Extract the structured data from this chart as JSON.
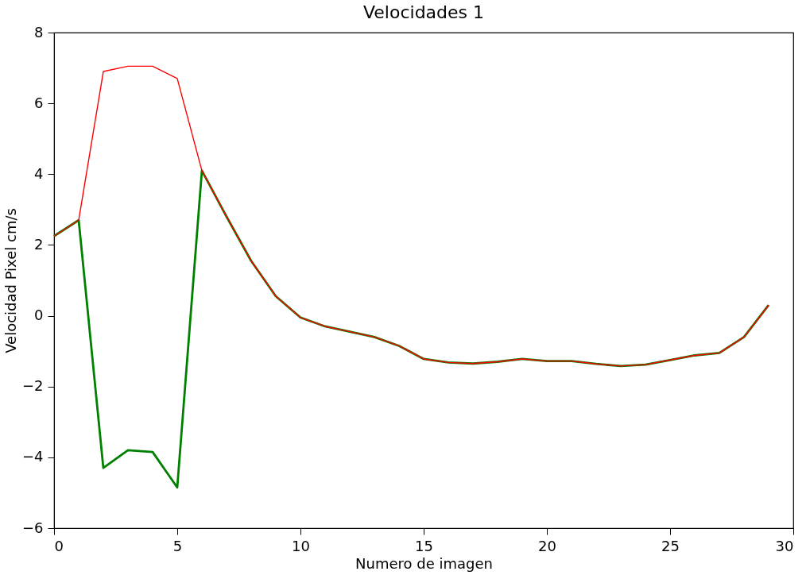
{
  "chart_data": {
    "type": "line",
    "title": "Velocidades 1",
    "xlabel": "Numero de imagen",
    "ylabel": "Velocidad Pixel cm/s",
    "x": [
      0,
      1,
      2,
      3,
      4,
      5,
      6,
      7,
      8,
      9,
      10,
      11,
      12,
      13,
      14,
      15,
      16,
      17,
      18,
      19,
      20,
      21,
      22,
      23,
      24,
      25,
      26,
      27,
      28,
      29
    ],
    "series": [
      {
        "color": "#008000",
        "values": [
          2.25,
          2.7,
          -4.3,
          -3.8,
          -3.85,
          -4.85,
          4.1,
          2.8,
          1.55,
          0.55,
          -0.05,
          -0.3,
          -0.45,
          -0.6,
          -0.85,
          -1.22,
          -1.32,
          -1.35,
          -1.3,
          -1.22,
          -1.28,
          -1.28,
          -1.36,
          -1.42,
          -1.38,
          -1.25,
          -1.12,
          -1.05,
          -0.6,
          0.3
        ]
      },
      {
        "color": "#ff0000",
        "values": [
          2.25,
          2.7,
          6.9,
          7.05,
          7.05,
          6.7,
          4.1,
          2.8,
          1.55,
          0.55,
          -0.05,
          -0.3,
          -0.45,
          -0.6,
          -0.85,
          -1.22,
          -1.32,
          -1.35,
          -1.3,
          -1.22,
          -1.28,
          -1.28,
          -1.36,
          -1.42,
          -1.38,
          -1.25,
          -1.12,
          -1.05,
          -0.6,
          0.3
        ]
      }
    ],
    "xlim": [
      0,
      30
    ],
    "xticks": [
      0,
      5,
      10,
      15,
      20,
      25,
      30
    ],
    "ylim": [
      -6,
      8
    ],
    "yticks": [
      {
        "value": -6,
        "label": "−6"
      },
      {
        "value": -4,
        "label": "−4"
      },
      {
        "value": -2,
        "label": "−2"
      },
      0,
      2,
      4,
      6,
      8
    ],
    "grid": false,
    "marker": "none",
    "line_style": "solid"
  }
}
